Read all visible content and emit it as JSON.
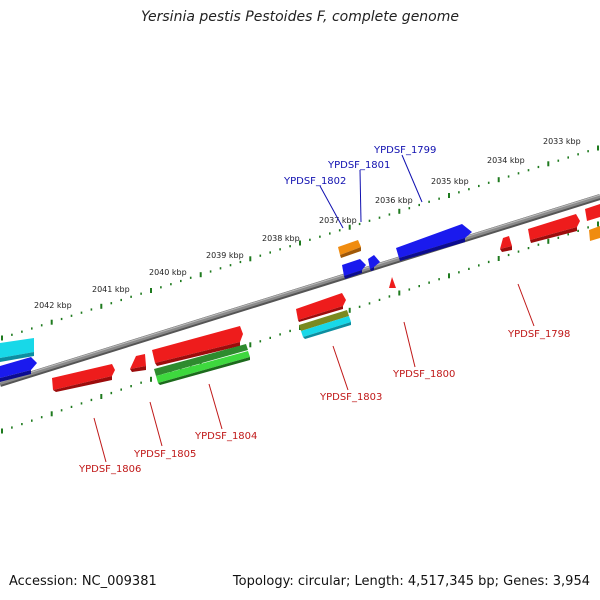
{
  "title": "Yersinia pestis Pestoides F, complete genome",
  "footer": {
    "accession": "Accession: NC_009381",
    "stats": "Topology: circular; Length: 4,517,345 bp; Genes: 3,954"
  },
  "kbp_labels": [
    "2033 kbp",
    "2034 kbp",
    "2035 kbp",
    "2036 kbp",
    "2037 kbp",
    "2038 kbp",
    "2039 kbp",
    "2040 kbp",
    "2041 kbp",
    "2042 kbp"
  ],
  "gene_labels_top": [
    "YPDSF_1799",
    "YPDSF_1801",
    "YPDSF_1802"
  ],
  "gene_labels_bottom": [
    "YPDSF_1798",
    "YPDSF_1800",
    "YPDSF_1803",
    "YPDSF_1804",
    "YPDSF_1805",
    "YPDSF_1806"
  ],
  "colors": {
    "backbone": "#7f7f7f",
    "tick": "#1e7a1e",
    "label_top": "#1010b0",
    "label_bottom": "#c01818",
    "red": "#ee1c1c",
    "blue": "#1a1aee",
    "cyan": "#18d8e8",
    "orange": "#f08c10",
    "green": "#2e8b2e",
    "lightgreen": "#3ed83e",
    "olive": "#7a8a20"
  }
}
